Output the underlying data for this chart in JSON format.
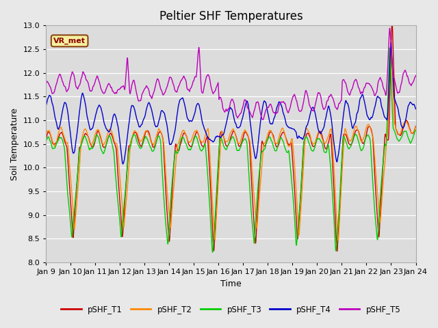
{
  "title": "Peltier SHF Temperatures",
  "xlabel": "Time",
  "ylabel": "Soil Temperature",
  "ylim": [
    8.0,
    13.0
  ],
  "series_colors": {
    "pSHF_T1": "#cc0000",
    "pSHF_T2": "#ff8800",
    "pSHF_T3": "#00cc00",
    "pSHF_T4": "#0000cc",
    "pSHF_T5": "#bb00bb"
  },
  "series_names": [
    "pSHF_T1",
    "pSHF_T2",
    "pSHF_T3",
    "pSHF_T4",
    "pSHF_T5"
  ],
  "xtick_labels": [
    "Jan 9",
    "Jan 10",
    "Jan 11",
    "Jan 12",
    "Jan 13",
    "Jan 14",
    "Jan 15",
    "Jan 16",
    "Jan 17",
    "Jan 18",
    "Jan 19",
    "Jan 20",
    "Jan 21",
    "Jan 22",
    "Jan 23",
    "Jan 24"
  ],
  "annotation_text": "VR_met",
  "background_color": "#e8e8e8",
  "plot_background": "#dcdcdc",
  "grid_color": "#ffffff",
  "linewidth": 1.0,
  "title_fontsize": 12,
  "label_fontsize": 9,
  "tick_fontsize": 8
}
